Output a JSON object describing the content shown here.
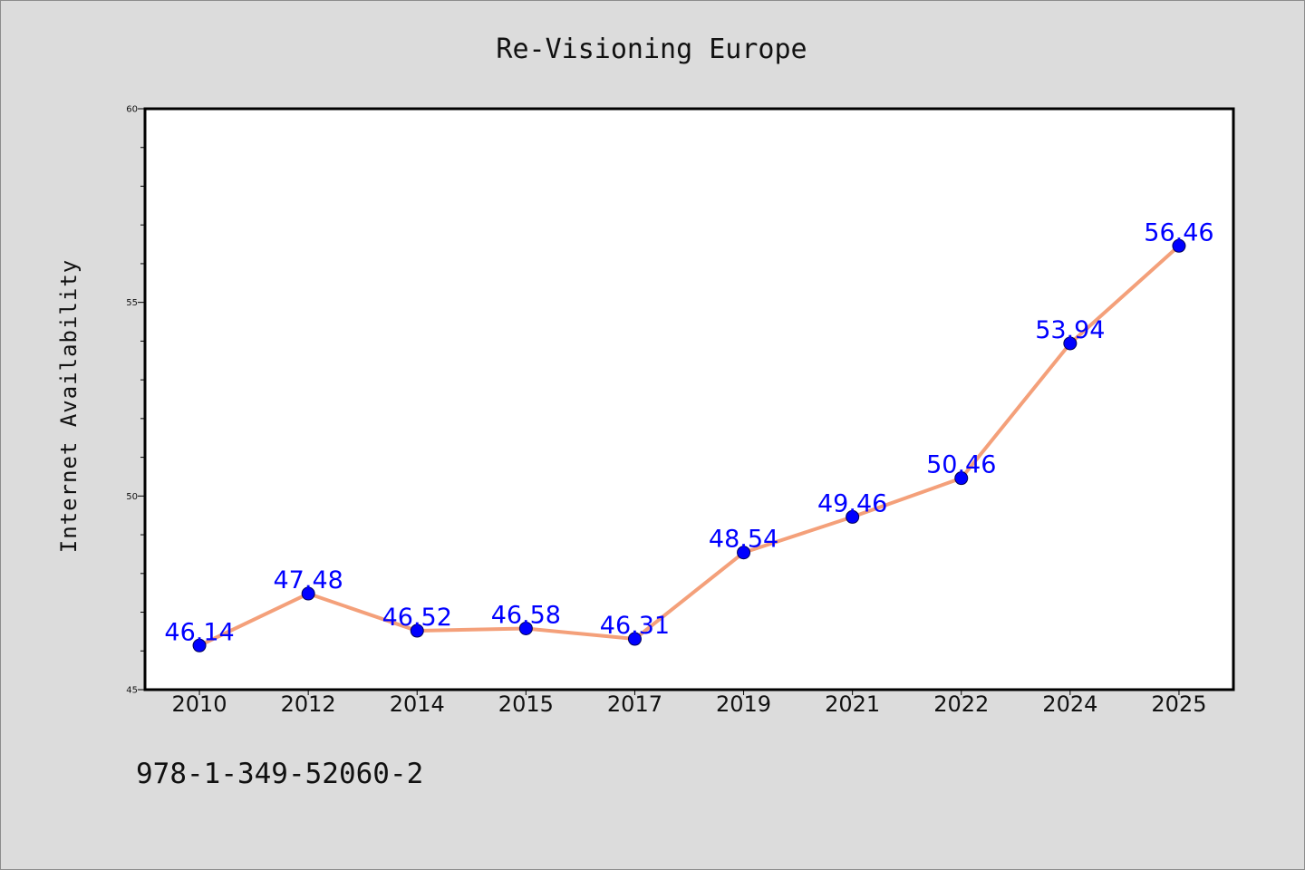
{
  "chart_data": {
    "type": "line",
    "title": "Re-Visioning Europe",
    "xlabel": "",
    "ylabel": "Internet Availability",
    "categories": [
      "2010",
      "2012",
      "2014",
      "2015",
      "2017",
      "2019",
      "2021",
      "2022",
      "2024",
      "2025"
    ],
    "series": [
      {
        "values": [
          46.14,
          47.48,
          46.52,
          46.58,
          46.31,
          48.54,
          49.46,
          50.46,
          53.94,
          56.46
        ],
        "line_color": "#f4a07a",
        "marker_color": "#0000ff",
        "label_color": "#0000ff"
      }
    ],
    "ylim": [
      45,
      60
    ],
    "yticks_major": [
      45,
      50,
      55,
      60
    ],
    "yticks_minor_step": 1,
    "data_labels": true,
    "grid": false,
    "legend": "none"
  },
  "footnote": "978-1-349-52060-2",
  "colors": {
    "background": "#dcdcdc",
    "plot_background": "#ffffff",
    "axis": "#000000"
  }
}
